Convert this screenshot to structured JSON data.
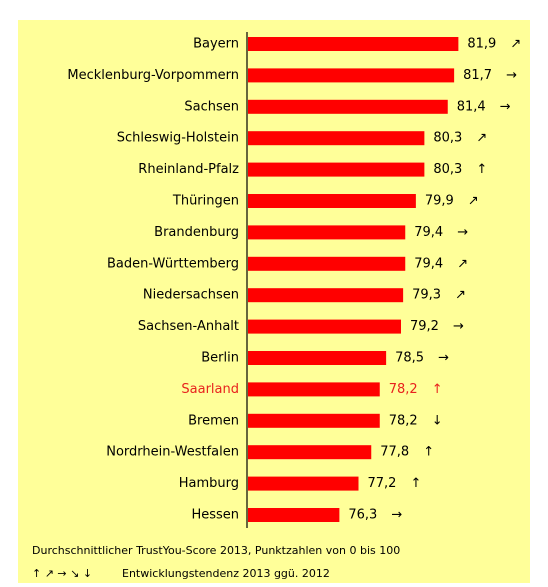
{
  "chart_data": {
    "type": "bar",
    "orientation": "horizontal",
    "categories": [
      "Bayern",
      "Mecklenburg-Vorpommern",
      "Sachsen",
      "Schleswig-Holstein",
      "Rheinland-Pfalz",
      "Thüringen",
      "Brandenburg",
      "Baden-Württemberg",
      "Niedersachsen",
      "Sachsen-Anhalt",
      "Berlin",
      "Saarland",
      "Bremen",
      "Nordrhein-Westfalen",
      "Hamburg",
      "Hessen"
    ],
    "values": [
      81.9,
      81.7,
      81.4,
      80.3,
      80.3,
      79.9,
      79.4,
      79.4,
      79.3,
      79.2,
      78.5,
      78.2,
      78.2,
      77.8,
      77.2,
      76.3
    ],
    "value_labels": [
      "81,9",
      "81,7",
      "81,4",
      "80,3",
      "80,3",
      "79,9",
      "79,4",
      "79,4",
      "79,3",
      "79,2",
      "78,5",
      "78,2",
      "78,2",
      "77,8",
      "77,2",
      "76,3"
    ],
    "trends": [
      "↗",
      "→",
      "→",
      "↗",
      "↑",
      "↗",
      "→",
      "↗",
      "↗",
      "→",
      "→",
      "↑",
      "↓",
      "↑",
      "↑",
      "→"
    ],
    "color": "#ff0000",
    "highlight_category": "Saarland",
    "highlight_color": "#e8231e",
    "xlim": [
      72,
      84
    ],
    "footnote": "Durchschnittlicher TrustYou-Score 2013, Punktzahlen von 0 bis 100",
    "legend_arrows": "↑ ↗ → ↘ ↓",
    "legend_text": "Entwicklungstendenz 2013 ggü. 2012"
  }
}
